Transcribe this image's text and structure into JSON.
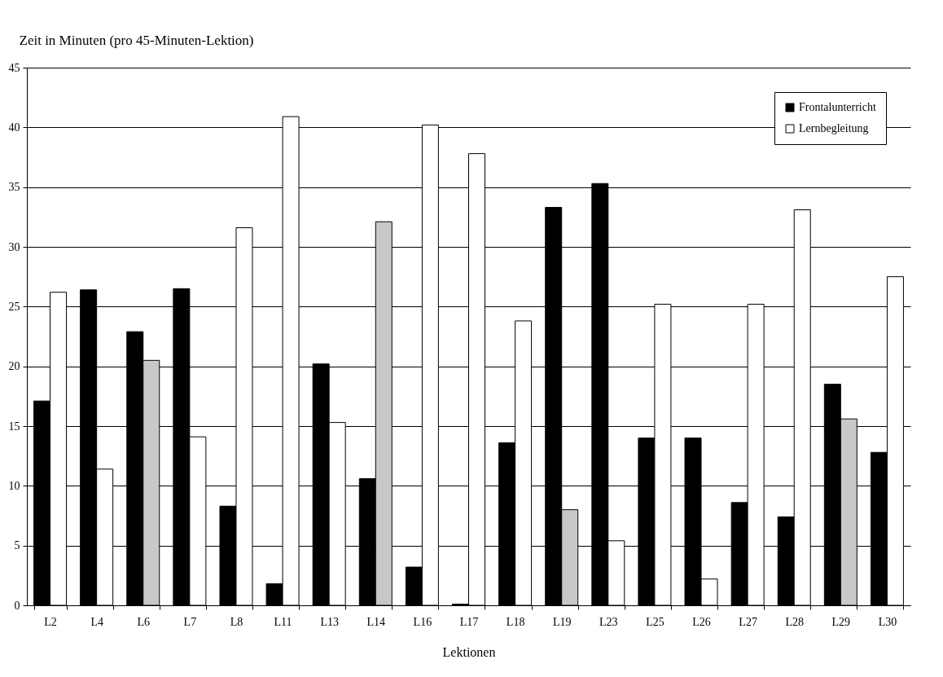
{
  "chart_data": {
    "type": "bar",
    "ylabel": "Zeit in Minuten (pro 45-Minuten-Lektion)",
    "xlabel": "Lektionen",
    "categories": [
      "L2",
      "L4",
      "L6",
      "L7",
      "L8",
      "L11",
      "L13",
      "L14",
      "L16",
      "L17",
      "L18",
      "L19",
      "L23",
      "L25",
      "L26",
      "L27",
      "L28",
      "L29",
      "L30"
    ],
    "series": [
      {
        "name": "Frontalunterricht",
        "color": "#000000",
        "values": [
          17.1,
          26.4,
          22.9,
          26.5,
          8.3,
          1.8,
          20.2,
          10.6,
          3.2,
          0.1,
          13.6,
          33.3,
          35.3,
          14.0,
          14.0,
          8.6,
          7.4,
          18.5,
          12.8
        ]
      },
      {
        "name": "Lernbegleitung",
        "color": "#ffffff",
        "colors": [
          "#ffffff",
          "#ffffff",
          "#c8c8c8",
          "#ffffff",
          "#ffffff",
          "#ffffff",
          "#ffffff",
          "#c8c8c8",
          "#ffffff",
          "#ffffff",
          "#ffffff",
          "#c8c8c8",
          "#ffffff",
          "#ffffff",
          "#ffffff",
          "#ffffff",
          "#ffffff",
          "#c8c8c8",
          "#ffffff"
        ],
        "values": [
          26.2,
          11.4,
          20.5,
          14.1,
          31.6,
          40.9,
          15.3,
          32.1,
          40.2,
          37.8,
          23.8,
          8.0,
          5.4,
          25.2,
          2.2,
          25.2,
          33.1,
          15.6,
          27.5
        ]
      }
    ],
    "ylim": [
      0,
      45
    ],
    "yticks": [
      0,
      5,
      10,
      15,
      20,
      25,
      30,
      35,
      40,
      45
    ],
    "grid": "y",
    "legend": "top right"
  }
}
